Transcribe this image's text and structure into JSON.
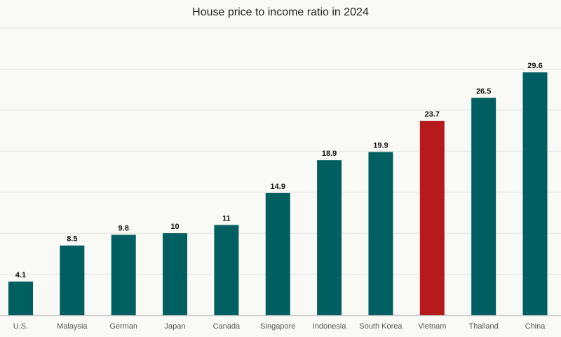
{
  "chart_data": {
    "type": "bar",
    "title": "House price to income ratio in 2024",
    "categories": [
      "U.S.",
      "Malaysia",
      "German",
      "Japan",
      "Canada",
      "Singapore",
      "Indonesia",
      "South Korea",
      "Vietnam",
      "Thailand",
      "China"
    ],
    "values": [
      4.1,
      8.5,
      9.8,
      10,
      11,
      14.9,
      18.9,
      19.9,
      23.7,
      26.5,
      29.6
    ],
    "data_labels": [
      "4.1",
      "8.5",
      "9.8",
      "10",
      "11",
      "14.9",
      "18.9",
      "19.9",
      "23.7",
      "26.5",
      "29.6"
    ],
    "ylim": [
      0,
      35
    ],
    "grid": true,
    "gridline_step": 5,
    "xlabel": "",
    "ylabel": "",
    "colors": {
      "default": "#005f60",
      "highlight": "#b51b1c",
      "highlight_category": "Vietnam",
      "grid": "#e3e3e0",
      "axis": "#cccccc"
    }
  }
}
